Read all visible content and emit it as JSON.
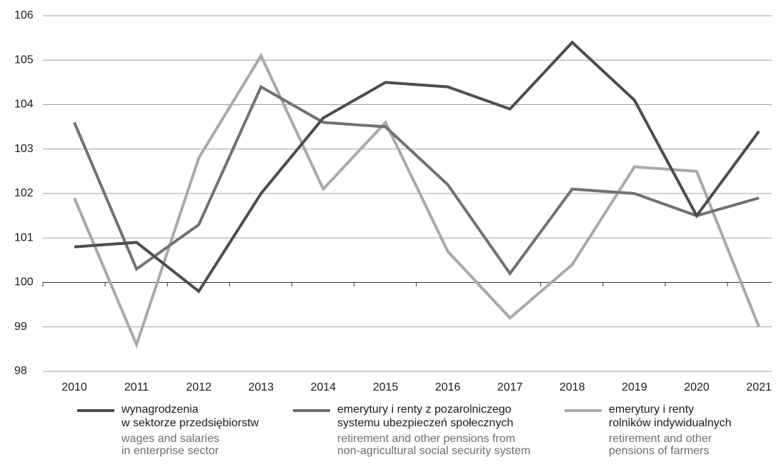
{
  "chart_data": {
    "type": "line",
    "categories": [
      "2010",
      "2011",
      "2012",
      "2013",
      "2014",
      "2015",
      "2016",
      "2017",
      "2018",
      "2019",
      "2020",
      "2021"
    ],
    "series": [
      {
        "name": "wynagrodzenia\nw sektorze przedsiębiorstw",
        "name_en": "wages and salaries\nin enterprise sector",
        "color": "#4d4d4f",
        "values": [
          100.8,
          100.9,
          99.8,
          102.0,
          103.7,
          104.5,
          104.4,
          103.9,
          105.4,
          104.1,
          101.5,
          103.4
        ]
      },
      {
        "name": "emerytury i renty z pozarolniczego\nsystemu ubezpieczeń społecznych",
        "name_en": "retirement and other pensions from\nnon-agricultural social security system",
        "color": "#717174",
        "values": [
          103.6,
          100.3,
          101.3,
          104.4,
          103.6,
          103.5,
          102.2,
          100.2,
          102.1,
          102.0,
          101.5,
          101.9
        ]
      },
      {
        "name": "emerytury i renty\nrolników indywidualnych",
        "name_en": "retirement and other\npensions of farmers",
        "color": "#a7a9ac",
        "values": [
          101.9,
          98.6,
          102.8,
          105.1,
          102.1,
          103.6,
          100.7,
          99.2,
          100.4,
          102.6,
          102.5,
          99.0
        ]
      }
    ],
    "ylim": [
      98,
      106
    ],
    "yticks": [
      98,
      99,
      100,
      101,
      102,
      103,
      104,
      105,
      106
    ],
    "baseline": 100,
    "grid": true
  }
}
